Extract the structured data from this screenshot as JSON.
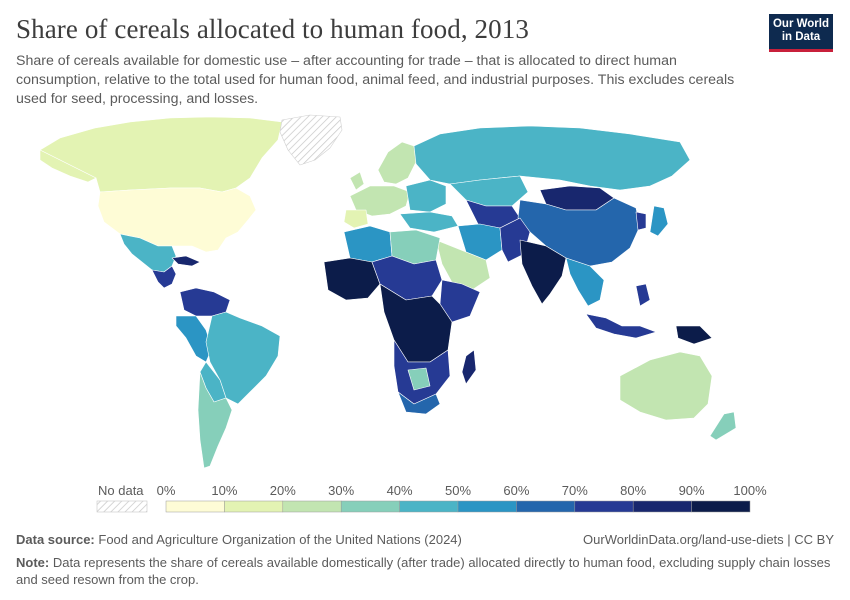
{
  "header": {
    "title": "Share of cereals allocated to human food, 2013",
    "subtitle": "Share of cereals available for domestic use – after accounting for trade – that is allocated to direct human consumption, relative to the total used for human food, animal feed, and industrial purposes. This excludes cereals used for seed, processing, and losses."
  },
  "logo": {
    "line1": "Our World",
    "line2": "in Data",
    "bg": "#0e2a4f",
    "accent": "#c8203b"
  },
  "legend": {
    "no_data_label": "No data",
    "ticks": [
      "0%",
      "10%",
      "20%",
      "30%",
      "40%",
      "50%",
      "60%",
      "70%",
      "80%",
      "90%",
      "100%"
    ],
    "colors": [
      "#fefcd6",
      "#e3f3b3",
      "#c2e5b1",
      "#86cfba",
      "#4bb4c6",
      "#2b95c4",
      "#2466ac",
      "#263a94",
      "#18276e",
      "#0c1c4a"
    ]
  },
  "footer": {
    "source_label": "Data source:",
    "source_text": "Food and Agriculture Organization of the United Nations (2024)",
    "credit": "OurWorldinData.org/land-use-diets | CC BY",
    "note_label": "Note:",
    "note_text": "Data represents the share of cereals available domestically (after trade) allocated directly to human food, excluding supply chain losses and seed resown from the crop."
  }
}
